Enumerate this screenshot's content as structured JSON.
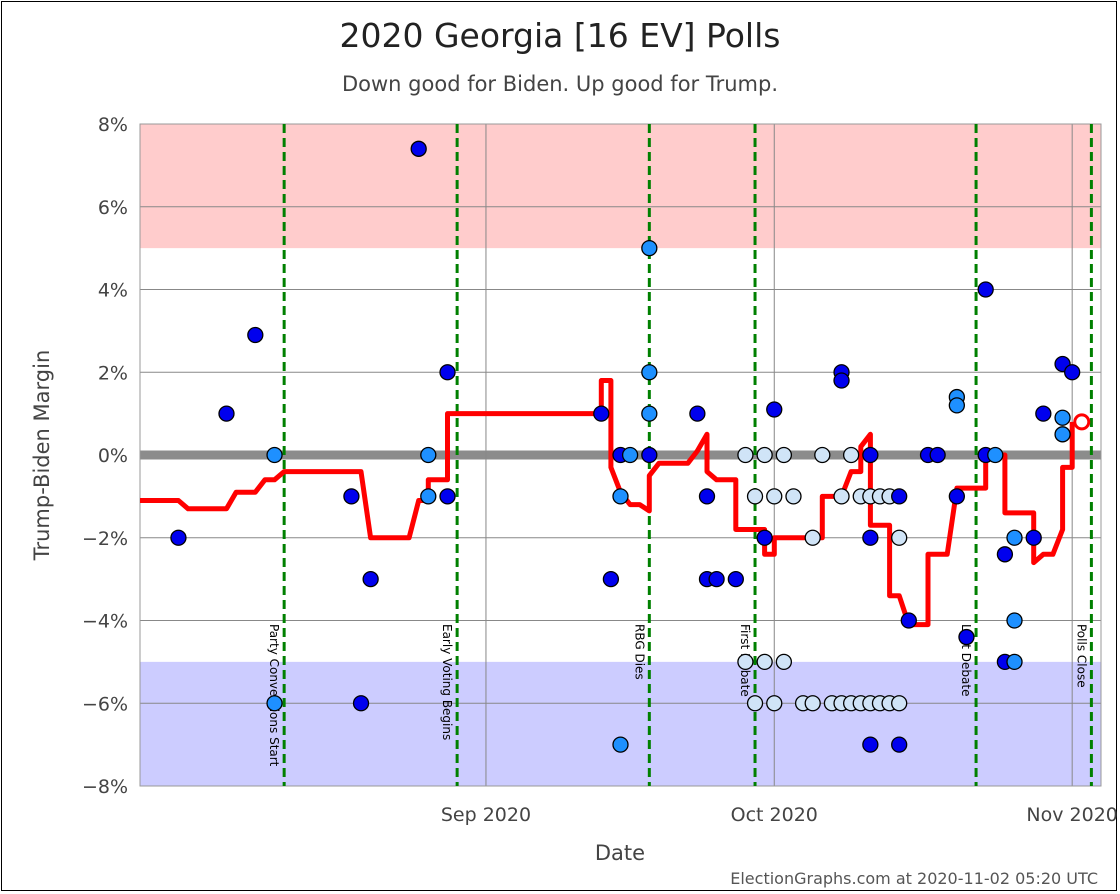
{
  "chart_data": {
    "type": "scatter",
    "title": "2020 Georgia [16 EV] Polls",
    "subtitle": "Down good for Biden. Up good for Trump.",
    "xlabel": "Date",
    "ylabel": "Trump-Biden Margin",
    "footer": "ElectionGraphs.com at 2020-11-02 05:20 UTC",
    "x_range": [
      "2020-07-27",
      "2020-11-04"
    ],
    "ylim": [
      -8,
      8
    ],
    "y_ticks": [
      {
        "value": 8,
        "label": "8%"
      },
      {
        "value": 6,
        "label": "6%"
      },
      {
        "value": 4,
        "label": "4%"
      },
      {
        "value": 2,
        "label": "2%"
      },
      {
        "value": 0,
        "label": "0%"
      },
      {
        "value": -2,
        "label": "−2%"
      },
      {
        "value": -4,
        "label": "−4%"
      },
      {
        "value": -6,
        "label": "−6%"
      },
      {
        "value": -8,
        "label": "−8%"
      }
    ],
    "x_ticks": [
      {
        "date": "2020-09-01",
        "label": "Sep 2020"
      },
      {
        "date": "2020-10-01",
        "label": "Oct 2020"
      },
      {
        "date": "2020-11-01",
        "label": "Nov 2020"
      }
    ],
    "bands": [
      {
        "from": 5,
        "to": 8,
        "color": "#ffcccc"
      },
      {
        "from": -8,
        "to": -5,
        "color": "#ccccff"
      }
    ],
    "zero_line_color": "#808080",
    "grid": true,
    "colors": {
      "dark": "#0000ee",
      "medium": "#1e90ff",
      "light": "#d0e4f7",
      "avg": "#ff0000",
      "event": "#008000"
    },
    "events": [
      {
        "date": "2020-08-11",
        "label": "Party Conventions Start"
      },
      {
        "date": "2020-08-29",
        "label": "Early Voting Begins"
      },
      {
        "date": "2020-09-18",
        "label": "RBG Dies"
      },
      {
        "date": "2020-09-29",
        "label": "First Debate"
      },
      {
        "date": "2020-10-22",
        "label": "Last Debate"
      },
      {
        "date": "2020-11-03",
        "label": "Polls Close"
      }
    ],
    "points": [
      {
        "x": "2020-07-31",
        "y": -2,
        "shade": "dark"
      },
      {
        "x": "2020-08-05",
        "y": 1,
        "shade": "dark"
      },
      {
        "x": "2020-08-08",
        "y": 2.9,
        "shade": "dark"
      },
      {
        "x": "2020-08-10",
        "y": 0,
        "shade": "medium"
      },
      {
        "x": "2020-08-10",
        "y": -6,
        "shade": "medium"
      },
      {
        "x": "2020-08-18",
        "y": -1,
        "shade": "dark"
      },
      {
        "x": "2020-08-19",
        "y": -6,
        "shade": "dark"
      },
      {
        "x": "2020-08-20",
        "y": -3,
        "shade": "dark"
      },
      {
        "x": "2020-08-25",
        "y": 7.4,
        "shade": "dark"
      },
      {
        "x": "2020-08-26",
        "y": 0,
        "shade": "medium"
      },
      {
        "x": "2020-08-26",
        "y": -1,
        "shade": "medium"
      },
      {
        "x": "2020-08-28",
        "y": -1,
        "shade": "dark"
      },
      {
        "x": "2020-08-28",
        "y": 2,
        "shade": "dark"
      },
      {
        "x": "2020-09-13",
        "y": 1,
        "shade": "dark"
      },
      {
        "x": "2020-09-14",
        "y": -3,
        "shade": "dark"
      },
      {
        "x": "2020-09-15",
        "y": 0,
        "shade": "dark"
      },
      {
        "x": "2020-09-15",
        "y": -1,
        "shade": "medium"
      },
      {
        "x": "2020-09-15",
        "y": -7,
        "shade": "medium"
      },
      {
        "x": "2020-09-16",
        "y": 0,
        "shade": "medium"
      },
      {
        "x": "2020-09-18",
        "y": 0,
        "shade": "dark"
      },
      {
        "x": "2020-09-18",
        "y": 5,
        "shade": "medium"
      },
      {
        "x": "2020-09-18",
        "y": 2,
        "shade": "medium"
      },
      {
        "x": "2020-09-18",
        "y": 1,
        "shade": "medium"
      },
      {
        "x": "2020-09-23",
        "y": 1,
        "shade": "dark"
      },
      {
        "x": "2020-09-24",
        "y": -1,
        "shade": "dark"
      },
      {
        "x": "2020-09-24",
        "y": -3,
        "shade": "dark"
      },
      {
        "x": "2020-09-25",
        "y": -3,
        "shade": "dark"
      },
      {
        "x": "2020-09-27",
        "y": -3,
        "shade": "dark"
      },
      {
        "x": "2020-09-28",
        "y": 0,
        "shade": "light"
      },
      {
        "x": "2020-09-28",
        "y": -5,
        "shade": "light"
      },
      {
        "x": "2020-09-29",
        "y": -1,
        "shade": "light"
      },
      {
        "x": "2020-09-29",
        "y": -6,
        "shade": "light"
      },
      {
        "x": "2020-09-30",
        "y": -2,
        "shade": "dark"
      },
      {
        "x": "2020-09-30",
        "y": 0,
        "shade": "light"
      },
      {
        "x": "2020-09-30",
        "y": -5,
        "shade": "light"
      },
      {
        "x": "2020-10-01",
        "y": 1.1,
        "shade": "dark"
      },
      {
        "x": "2020-10-01",
        "y": -1,
        "shade": "light"
      },
      {
        "x": "2020-10-01",
        "y": -6,
        "shade": "light"
      },
      {
        "x": "2020-10-02",
        "y": 0,
        "shade": "light"
      },
      {
        "x": "2020-10-02",
        "y": -5,
        "shade": "light"
      },
      {
        "x": "2020-10-03",
        "y": -1,
        "shade": "light"
      },
      {
        "x": "2020-10-04",
        "y": -6,
        "shade": "light"
      },
      {
        "x": "2020-10-05",
        "y": -2,
        "shade": "light"
      },
      {
        "x": "2020-10-05",
        "y": -6,
        "shade": "light"
      },
      {
        "x": "2020-10-06",
        "y": 0,
        "shade": "light"
      },
      {
        "x": "2020-10-07",
        "y": -6,
        "shade": "light"
      },
      {
        "x": "2020-10-08",
        "y": 2,
        "shade": "dark"
      },
      {
        "x": "2020-10-08",
        "y": -1,
        "shade": "light"
      },
      {
        "x": "2020-10-08",
        "y": 1.8,
        "shade": "dark"
      },
      {
        "x": "2020-10-08",
        "y": -6,
        "shade": "light"
      },
      {
        "x": "2020-10-09",
        "y": 0,
        "shade": "light"
      },
      {
        "x": "2020-10-09",
        "y": -6,
        "shade": "light"
      },
      {
        "x": "2020-10-10",
        "y": -1,
        "shade": "light"
      },
      {
        "x": "2020-10-10",
        "y": -6,
        "shade": "light"
      },
      {
        "x": "2020-10-11",
        "y": 0,
        "shade": "dark"
      },
      {
        "x": "2020-10-11",
        "y": -1,
        "shade": "light"
      },
      {
        "x": "2020-10-11",
        "y": -6,
        "shade": "light"
      },
      {
        "x": "2020-10-11",
        "y": -2,
        "shade": "dark"
      },
      {
        "x": "2020-10-11",
        "y": -7,
        "shade": "dark"
      },
      {
        "x": "2020-10-12",
        "y": -1,
        "shade": "light"
      },
      {
        "x": "2020-10-12",
        "y": -6,
        "shade": "light"
      },
      {
        "x": "2020-10-13",
        "y": -1,
        "shade": "light"
      },
      {
        "x": "2020-10-13",
        "y": -6,
        "shade": "light"
      },
      {
        "x": "2020-10-14",
        "y": -7,
        "shade": "dark"
      },
      {
        "x": "2020-10-14",
        "y": -1,
        "shade": "dark"
      },
      {
        "x": "2020-10-14",
        "y": -2,
        "shade": "light"
      },
      {
        "x": "2020-10-14",
        "y": -6,
        "shade": "light"
      },
      {
        "x": "2020-10-15",
        "y": -4,
        "shade": "dark"
      },
      {
        "x": "2020-10-17",
        "y": 0,
        "shade": "dark"
      },
      {
        "x": "2020-10-18",
        "y": 0,
        "shade": "dark"
      },
      {
        "x": "2020-10-20",
        "y": 1.4,
        "shade": "medium"
      },
      {
        "x": "2020-10-20",
        "y": 1.2,
        "shade": "medium"
      },
      {
        "x": "2020-10-20",
        "y": -1,
        "shade": "dark"
      },
      {
        "x": "2020-10-21",
        "y": -4.4,
        "shade": "dark"
      },
      {
        "x": "2020-10-23",
        "y": 4,
        "shade": "dark"
      },
      {
        "x": "2020-10-23",
        "y": 0,
        "shade": "dark"
      },
      {
        "x": "2020-10-24",
        "y": 0,
        "shade": "medium"
      },
      {
        "x": "2020-10-25",
        "y": -2.4,
        "shade": "dark"
      },
      {
        "x": "2020-10-25",
        "y": -5,
        "shade": "dark"
      },
      {
        "x": "2020-10-26",
        "y": -2,
        "shade": "medium"
      },
      {
        "x": "2020-10-26",
        "y": -4,
        "shade": "medium"
      },
      {
        "x": "2020-10-26",
        "y": -5,
        "shade": "medium"
      },
      {
        "x": "2020-10-28",
        "y": -2,
        "shade": "dark"
      },
      {
        "x": "2020-10-29",
        "y": 1,
        "shade": "dark"
      },
      {
        "x": "2020-10-31",
        "y": 0.9,
        "shade": "medium"
      },
      {
        "x": "2020-10-31",
        "y": 0.5,
        "shade": "medium"
      },
      {
        "x": "2020-10-31",
        "y": 2.2,
        "shade": "dark"
      },
      {
        "x": "2020-11-01",
        "y": 2,
        "shade": "dark"
      }
    ],
    "average": [
      [
        "2020-07-27",
        -1.1
      ],
      [
        "2020-07-31",
        -1.1
      ],
      [
        "2020-08-01",
        -1.3
      ],
      [
        "2020-08-05",
        -1.3
      ],
      [
        "2020-08-06",
        -0.9
      ],
      [
        "2020-08-08",
        -0.9
      ],
      [
        "2020-08-09",
        -0.6
      ],
      [
        "2020-08-10",
        -0.6
      ],
      [
        "2020-08-11",
        -0.4
      ],
      [
        "2020-08-19",
        -0.4
      ],
      [
        "2020-08-20",
        -2
      ],
      [
        "2020-08-24",
        -2
      ],
      [
        "2020-08-25",
        -1.1
      ],
      [
        "2020-08-26",
        -1.1
      ],
      [
        "2020-08-26",
        -0.6
      ],
      [
        "2020-08-28",
        -0.6
      ],
      [
        "2020-08-28",
        1
      ],
      [
        "2020-09-13",
        1
      ],
      [
        "2020-09-13",
        1.8
      ],
      [
        "2020-09-14",
        1.8
      ],
      [
        "2020-09-14",
        -0.3
      ],
      [
        "2020-09-15",
        -0.9
      ],
      [
        "2020-09-16",
        -1.2
      ],
      [
        "2020-09-17",
        -1.2
      ],
      [
        "2020-09-18",
        -1.35
      ],
      [
        "2020-09-18",
        -0.5
      ],
      [
        "2020-09-19",
        -0.2
      ],
      [
        "2020-09-22",
        -0.2
      ],
      [
        "2020-09-23",
        0.1
      ],
      [
        "2020-09-24",
        0.5
      ],
      [
        "2020-09-24",
        -0.4
      ],
      [
        "2020-09-25",
        -0.6
      ],
      [
        "2020-09-27",
        -0.6
      ],
      [
        "2020-09-27",
        -1.8
      ],
      [
        "2020-09-30",
        -1.8
      ],
      [
        "2020-09-30",
        -2.4
      ],
      [
        "2020-10-01",
        -2.4
      ],
      [
        "2020-10-01",
        -2
      ],
      [
        "2020-10-06",
        -2
      ],
      [
        "2020-10-06",
        -1
      ],
      [
        "2020-10-08",
        -1
      ],
      [
        "2020-10-09",
        -0.4
      ],
      [
        "2020-10-10",
        -0.4
      ],
      [
        "2020-10-10",
        0.2
      ],
      [
        "2020-10-11",
        0.5
      ],
      [
        "2020-10-11",
        -1.7
      ],
      [
        "2020-10-13",
        -1.7
      ],
      [
        "2020-10-13",
        -3.4
      ],
      [
        "2020-10-14",
        -3.4
      ],
      [
        "2020-10-15",
        -4.1
      ],
      [
        "2020-10-17",
        -4.1
      ],
      [
        "2020-10-17",
        -2.4
      ],
      [
        "2020-10-19",
        -2.4
      ],
      [
        "2020-10-20",
        -0.8
      ],
      [
        "2020-10-23",
        -0.8
      ],
      [
        "2020-10-23",
        0
      ],
      [
        "2020-10-25",
        0
      ],
      [
        "2020-10-25",
        -1.4
      ],
      [
        "2020-10-28",
        -1.4
      ],
      [
        "2020-10-28",
        -2.6
      ],
      [
        "2020-10-29",
        -2.4
      ],
      [
        "2020-10-30",
        -2.4
      ],
      [
        "2020-10-31",
        -1.8
      ],
      [
        "2020-10-31",
        -0.3
      ],
      [
        "2020-11-01",
        -0.3
      ],
      [
        "2020-11-01",
        0.8
      ]
    ],
    "current_marker": {
      "x": "2020-11-02",
      "y": 0.8
    }
  }
}
